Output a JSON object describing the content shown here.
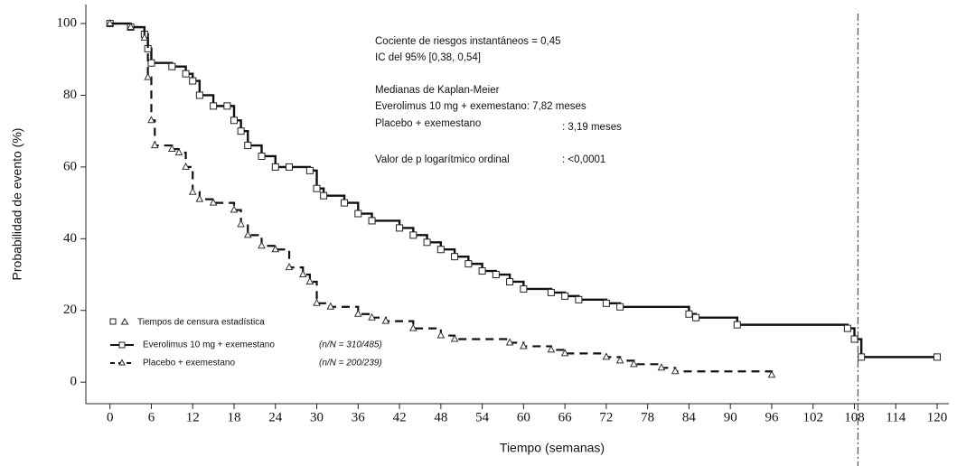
{
  "chart_data": {
    "type": "step",
    "x_label": "Tiempo (semanas)",
    "y_label": "Probabilidad de evento (%)",
    "xlim": [
      -3.5,
      121.7
    ],
    "ylim": [
      -6,
      105.3
    ],
    "xticks": [
      0,
      6,
      12,
      18,
      24,
      30,
      36,
      42,
      48,
      54,
      60,
      66,
      72,
      78,
      84,
      90,
      96,
      102,
      108,
      114,
      120
    ],
    "yticks": [
      0,
      20,
      40,
      60,
      80,
      100
    ],
    "reference_x": 108.5,
    "annotations": [
      "Cociente de riesgos instantáneos = 0,45",
      "IC del 95% [0,38, 0,54]",
      "Medianas de Kaplan-Meier",
      "Everolimus 10 mg + exemestano: 7,82 meses",
      "Placebo + exemestano",
      ": 3,19 meses",
      "Valor de p logarítmico ordinal",
      ": <0,0001"
    ],
    "censor_label": "Tiempos de censura estadística",
    "series": [
      {
        "name": "Everolimus 10 mg + exemestano",
        "counts": "(n/N = 310/485)",
        "color": "#111111",
        "dash": false,
        "x": [
          0,
          3,
          5,
          5.5,
          6,
          9,
          11,
          12,
          13,
          15,
          17,
          18,
          19,
          20,
          22,
          24,
          26,
          29,
          30,
          31,
          34,
          36,
          38,
          42,
          44,
          46,
          48,
          50,
          52,
          54,
          56,
          58,
          60,
          64,
          66,
          68,
          72,
          74,
          84,
          85,
          91,
          107,
          108,
          109,
          120
        ],
        "values": [
          100,
          99,
          97,
          93,
          89,
          88,
          86,
          84,
          80,
          77,
          77,
          73,
          70,
          66,
          63,
          60,
          60,
          59,
          54,
          52,
          50,
          47,
          45,
          43,
          41,
          39,
          37,
          35,
          33,
          31,
          30,
          28,
          26,
          25,
          24,
          23,
          22,
          21,
          19,
          18,
          16,
          15,
          12,
          7,
          7
        ]
      },
      {
        "name": "Placebo + exemestano",
        "counts": "(n/N = 200/239)",
        "color": "#111111",
        "dash": true,
        "x": [
          0,
          3,
          5,
          5.5,
          6,
          6.5,
          9,
          10,
          11,
          12,
          13,
          15,
          18,
          19,
          20,
          22,
          24,
          26,
          28,
          29,
          30,
          32,
          36,
          38,
          40,
          44,
          48,
          50,
          58,
          60,
          64,
          66,
          72,
          74,
          76,
          80,
          82,
          96
        ],
        "values": [
          100,
          99,
          96,
          85,
          73,
          66,
          65,
          64,
          60,
          53,
          51,
          50,
          48,
          44,
          41,
          38,
          37,
          32,
          30,
          28,
          22,
          21,
          19,
          18,
          17,
          15,
          13,
          12,
          11,
          10,
          9,
          8,
          7,
          6,
          5,
          4,
          3,
          2
        ]
      }
    ]
  }
}
